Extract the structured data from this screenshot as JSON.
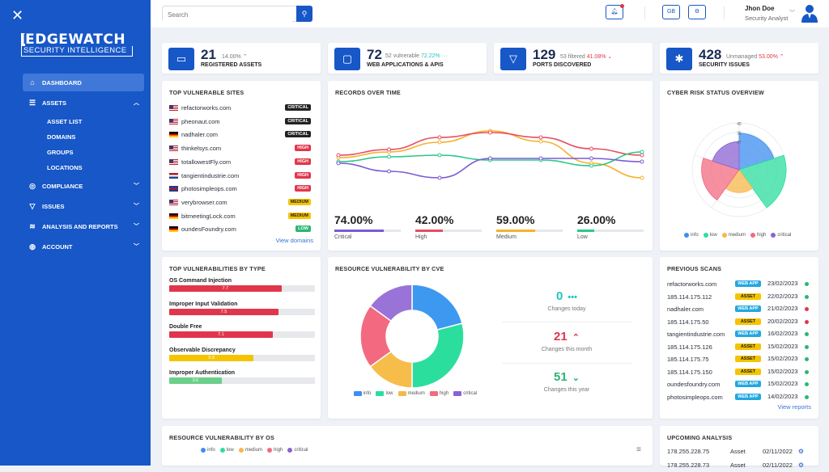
{
  "sidebar": {
    "logo_main": "EDGEWATCH",
    "logo_sub": "SECURITY INTELLIGENCE",
    "items": [
      {
        "label": "DASHBOARD",
        "icon": "home-icon"
      },
      {
        "label": "ASSETS",
        "icon": "list-icon"
      },
      {
        "label": "COMPLIANCE",
        "icon": "check-circle-icon"
      },
      {
        "label": "ISSUES",
        "icon": "filter-icon"
      },
      {
        "label": "ANALYSIS AND REPORTS",
        "icon": "wifi-icon"
      },
      {
        "label": "ACCOUNT",
        "icon": "user-icon"
      }
    ],
    "asset_sub": [
      "ASSET LIST",
      "DOMAINS",
      "GROUPS",
      "LOCATIONS"
    ]
  },
  "header": {
    "search_placeholder": "Search",
    "lang": "GB",
    "user_name": "Jhon Doe",
    "user_role": "Security Analyst"
  },
  "stats": [
    {
      "value": "21",
      "change": "14.00%",
      "change_dir": "up",
      "label": "REGISTERED ASSETS",
      "icon": "laptop-icon"
    },
    {
      "value": "72",
      "extra": "52 vulnerable",
      "change": "72.22%",
      "change_dir": "flat",
      "label": "WEB APPLICATIONS & APIS",
      "icon": "monitor-icon"
    },
    {
      "value": "129",
      "extra": "53 filtered",
      "change": "41.08%",
      "change_dir": "down",
      "label": "PORTS DISCOVERED",
      "icon": "funnel-icon"
    },
    {
      "value": "428",
      "extra": "Unmanaged",
      "change": "53.00%",
      "change_dir": "up",
      "label": "SECURITY ISSUES",
      "icon": "bug-icon"
    }
  ],
  "top_sites": {
    "title": "TOP VULNERABLE SITES",
    "link": "View domains",
    "rows": [
      {
        "site": "refactorworks.com",
        "flag": "us",
        "level": "CRITICAL"
      },
      {
        "site": "pheonaut.com",
        "flag": "us",
        "level": "CRITICAL"
      },
      {
        "site": "nadhaler.com",
        "flag": "de",
        "level": "CRITICAL"
      },
      {
        "site": "thinkelsys.com",
        "flag": "us",
        "level": "HIGH"
      },
      {
        "site": "totallowestFly.com",
        "flag": "us",
        "level": "HIGH"
      },
      {
        "site": "tangientindustrie.com",
        "flag": "nl",
        "level": "HIGH"
      },
      {
        "site": "photosimpleops.com",
        "flag": "gb",
        "level": "HIGH"
      },
      {
        "site": "verybrowser.com",
        "flag": "us",
        "level": "MEDIUM"
      },
      {
        "site": "bitmeetingLock.com",
        "flag": "de",
        "level": "MEDIUM"
      },
      {
        "site": "oundesFoundry.com",
        "flag": "de",
        "level": "LOW"
      }
    ]
  },
  "records": {
    "title": "RECORDS OVER TIME",
    "metrics": [
      {
        "value": "74.00%",
        "label": "Critical",
        "color": "#7b5ad6",
        "fill": 0.74
      },
      {
        "value": "42.00%",
        "label": "High",
        "color": "#e84d60",
        "fill": 0.42
      },
      {
        "value": "59.00%",
        "label": "Medium",
        "color": "#f6b12c",
        "fill": 0.59
      },
      {
        "value": "26.00%",
        "label": "Low",
        "color": "#2bc88a",
        "fill": 0.26
      }
    ]
  },
  "chart_data": [
    {
      "type": "line",
      "title": "RECORDS OVER TIME",
      "x": [
        1,
        2,
        3,
        4,
        5,
        6,
        7
      ],
      "series": [
        {
          "color": "#f6b12c",
          "values": [
            47,
            54,
            66,
            80,
            67,
            40,
            22
          ]
        },
        {
          "color": "#e84d60",
          "values": [
            50,
            57,
            72,
            78,
            72,
            58,
            50
          ]
        },
        {
          "color": "#2bc88a",
          "values": [
            42,
            48,
            50,
            44,
            44,
            37,
            54
          ]
        },
        {
          "color": "#7b5ad6",
          "values": [
            40,
            30,
            22,
            46,
            46,
            46,
            42
          ]
        }
      ]
    },
    {
      "type": "radar",
      "title": "CYBER RISK STATUS OVERVIEW",
      "ticks": [
        "45",
        "36",
        "27"
      ],
      "categories": [
        "info",
        "low",
        "medium",
        "high",
        "critical"
      ],
      "values": [
        35,
        45,
        22,
        36,
        27
      ],
      "colors": [
        "#3d8ef0",
        "#2bde9e",
        "#f6b74a",
        "#f36a80",
        "#8a63d2"
      ]
    },
    {
      "type": "pie",
      "title": "RESOURCE VULNERABILITY BY CVE",
      "categories": [
        "info",
        "low",
        "medium",
        "high",
        "critical"
      ],
      "values": [
        21,
        29,
        15,
        20,
        15
      ],
      "colors": [
        "#3d98f0",
        "#2bde9e",
        "#f6bd4a",
        "#f36a80",
        "#9a73d8"
      ]
    }
  ],
  "vuln_types": {
    "title": "TOP VULNERABILITIES BY TYPE",
    "rows": [
      {
        "name": "OS Command Injection",
        "value": "7.7",
        "color": "#e0364b"
      },
      {
        "name": "Improper Input Validation",
        "value": "7.5",
        "color": "#e0364b"
      },
      {
        "name": "Double Free",
        "value": "7.1",
        "color": "#e0364b"
      },
      {
        "name": "Observable Discrepancy",
        "value": "5.8",
        "color": "#f5c400"
      },
      {
        "name": "Improper Authentication",
        "value": "3.6",
        "color": "#6ccf8a"
      }
    ]
  },
  "cve": {
    "title": "RESOURCE VULNERABILITY BY CVE",
    "changes": [
      {
        "value": "0",
        "label": "Changes today",
        "color": "#22c3c3",
        "arrow": "•••"
      },
      {
        "value": "21",
        "label": "Changes this month",
        "color": "#e0364b",
        "arrow": "⌃"
      },
      {
        "value": "51",
        "label": "Changes this year",
        "color": "#2bb673",
        "arrow": "⌄"
      }
    ]
  },
  "legend": [
    "info",
    "low",
    "medium",
    "high",
    "critical"
  ],
  "previous_scans": {
    "title": "PREVIOUS SCANS",
    "link": "View reports",
    "rows": [
      {
        "target": "refactorworks.com",
        "type": "WEB APP",
        "date": "23/02/2023",
        "status": "#2bb673"
      },
      {
        "target": "185.114.175.112",
        "type": "ASSET",
        "date": "22/02/2023",
        "status": "#2bb673"
      },
      {
        "target": "nadhaler.com",
        "type": "WEB APP",
        "date": "21/02/2023",
        "status": "#e0364b"
      },
      {
        "target": "185.114.175.50",
        "type": "ASSET",
        "date": "20/02/2023",
        "status": "#e0364b"
      },
      {
        "target": "tangientindustrie.com",
        "type": "WEB APP",
        "date": "16/02/2023",
        "status": "#2bb673"
      },
      {
        "target": "185.114.175.126",
        "type": "ASSET",
        "date": "15/02/2023",
        "status": "#2bb673"
      },
      {
        "target": "185.114.175.75",
        "type": "ASSET",
        "date": "15/02/2023",
        "status": "#2bb673"
      },
      {
        "target": "185.114.175.150",
        "type": "ASSET",
        "date": "15/02/2023",
        "status": "#2bb673"
      },
      {
        "target": "oundesfoundry.com",
        "type": "WEB APP",
        "date": "15/02/2023",
        "status": "#2bb673"
      },
      {
        "target": "photosimpleops.com",
        "type": "WEB APP",
        "date": "14/02/2023",
        "status": "#2bb673"
      }
    ]
  },
  "os": {
    "title": "RESOURCE VULNERABILITY BY OS",
    "menu_icon": "hamburger-icon"
  },
  "upcoming": {
    "title": "UPCOMING ANALYSIS",
    "rows": [
      {
        "target": "178.255.228.75",
        "type": "Asset",
        "date": "02/11/2022"
      },
      {
        "target": "178.255.228.73",
        "type": "Asset",
        "date": "02/11/2022"
      }
    ]
  }
}
